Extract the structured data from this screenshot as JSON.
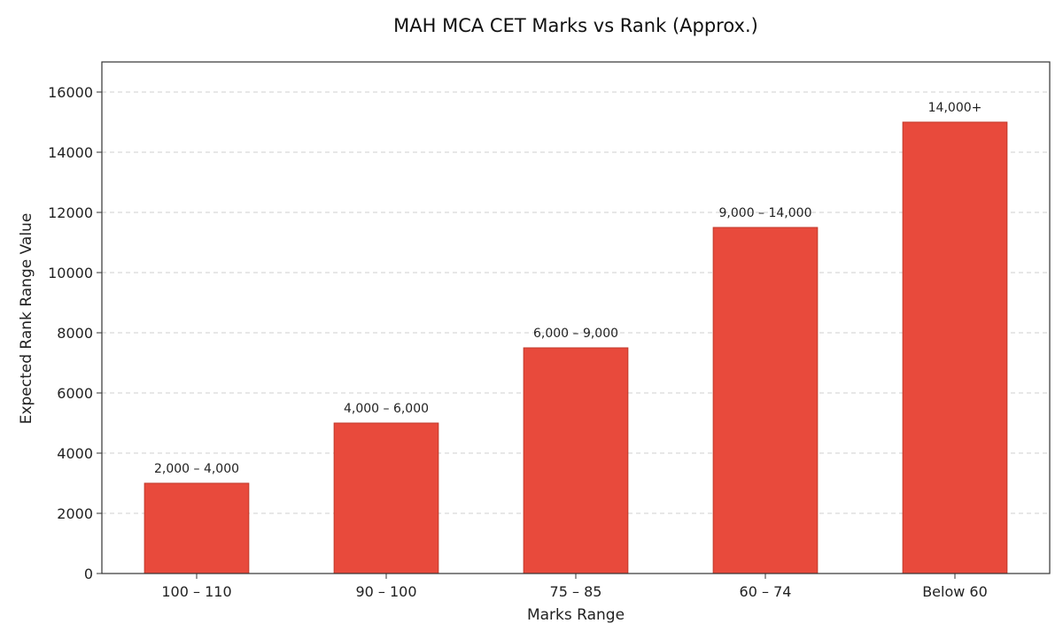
{
  "chart_data": {
    "type": "bar",
    "title": "MAH MCA CET Marks vs Rank (Approx.)",
    "xlabel": "Marks Range",
    "ylabel": "Expected Rank Range Value",
    "categories": [
      "100 – 110",
      "90 – 100",
      "75 – 85",
      "60 – 74",
      "Below 60"
    ],
    "values": [
      3000,
      5000,
      7500,
      11500,
      15000
    ],
    "data_labels": [
      "2,000 – 4,000",
      "4,000 – 6,000",
      "6,000 – 9,000",
      "9,000 – 14,000",
      "14,000+"
    ],
    "ylim": [
      0,
      17000
    ],
    "yticks": [
      0,
      2000,
      4000,
      6000,
      8000,
      10000,
      12000,
      14000,
      16000
    ],
    "grid": true,
    "bar_color": "#e84a3c",
    "bar_edge_color": "#c0392b"
  }
}
